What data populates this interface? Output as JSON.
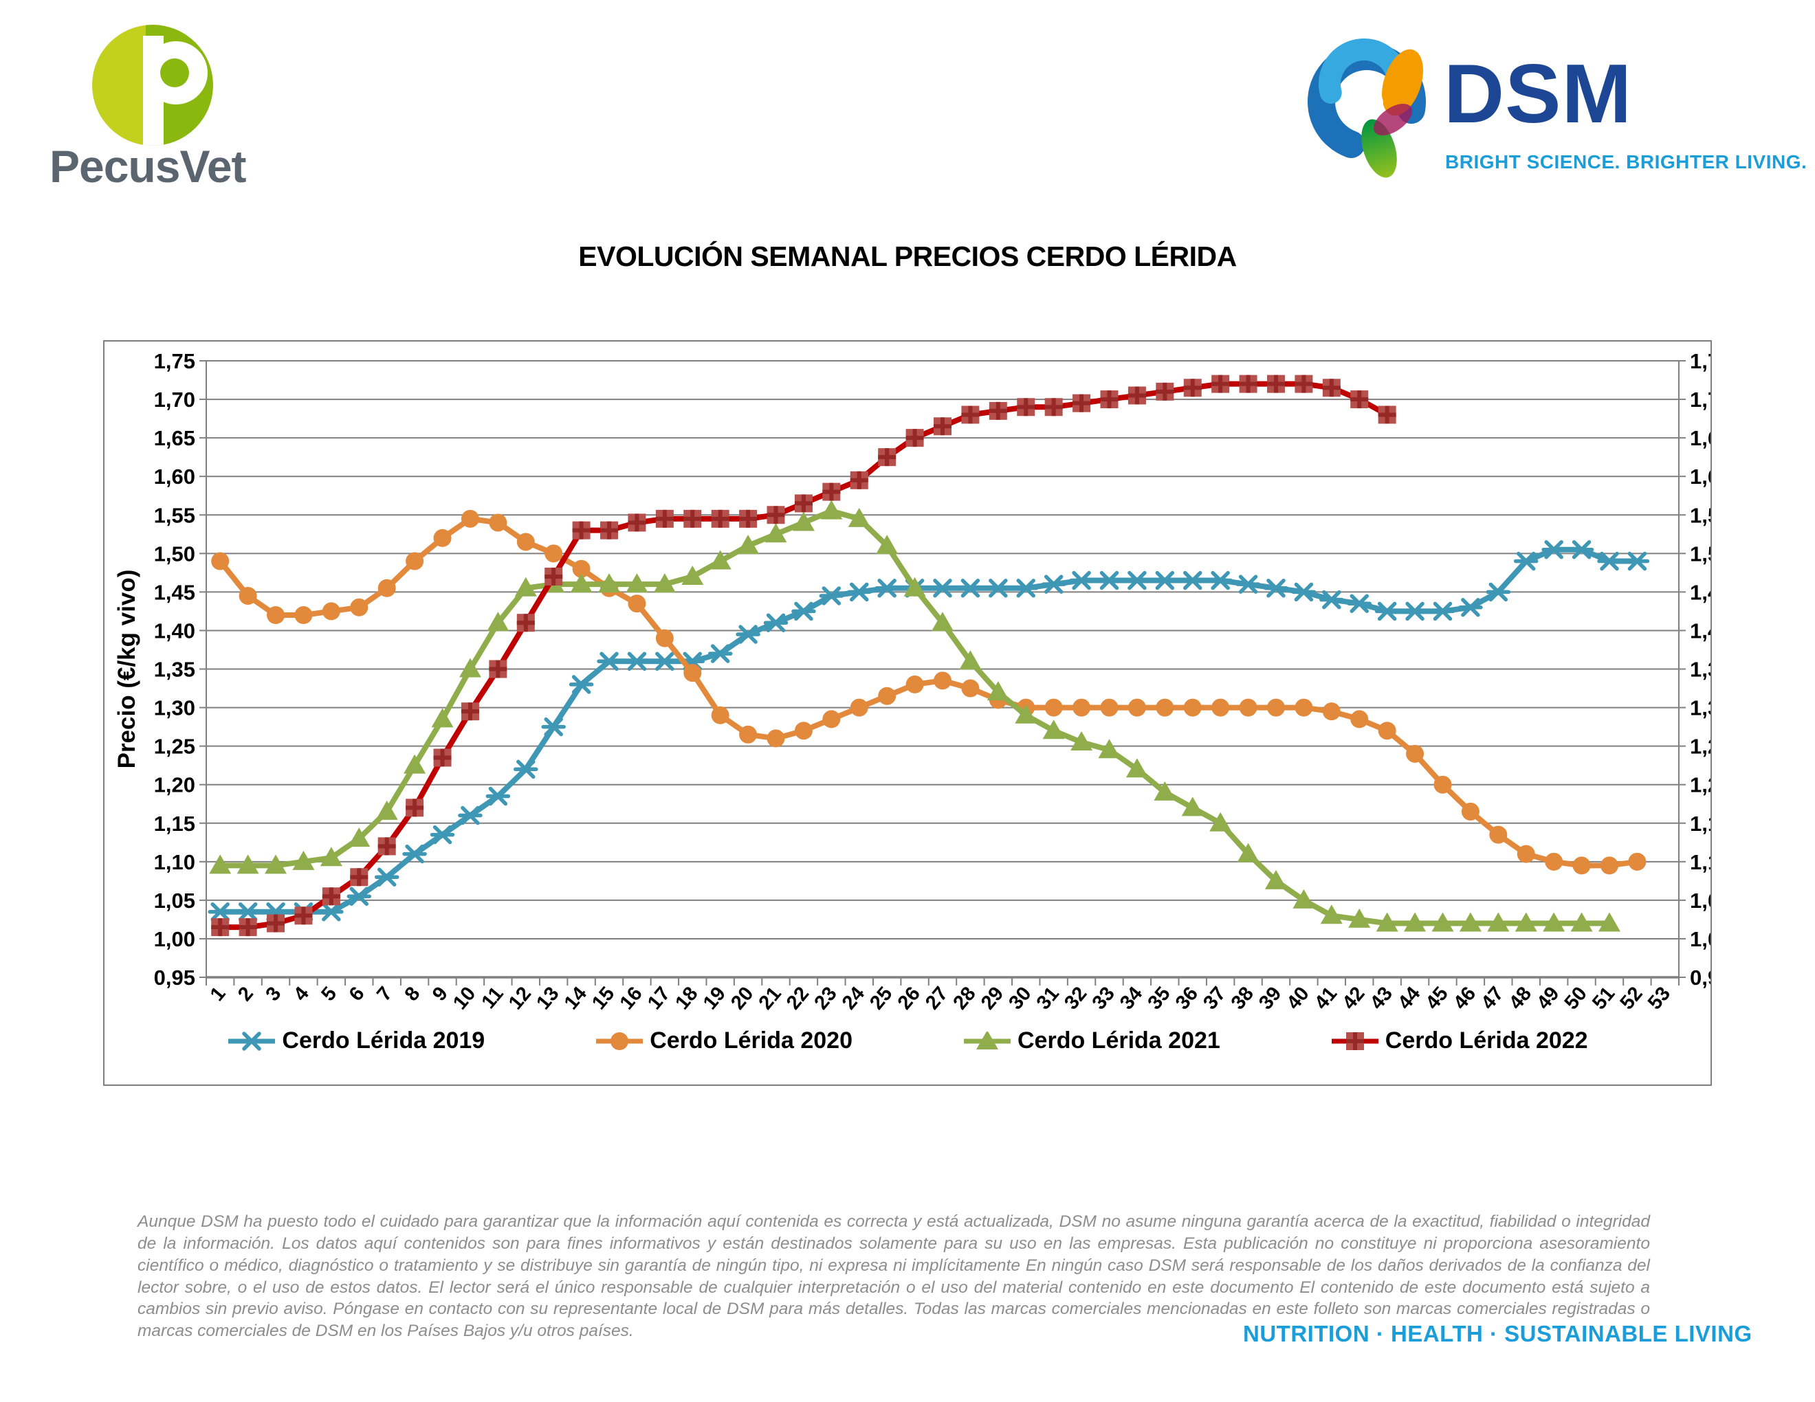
{
  "header": {
    "pecusvet": {
      "wordmark": "PecusVet",
      "monogram": "P"
    },
    "dsm": {
      "wordmark": "DSM",
      "tagline": "BRIGHT SCIENCE. BRIGHTER LIVING."
    }
  },
  "title": "EVOLUCIÓN SEMANAL PRECIOS CERDO LÉRIDA",
  "chart_data": {
    "type": "line",
    "title": "EVOLUCIÓN SEMANAL PRECIOS CERDO LÉRIDA",
    "xlabel": "",
    "ylabel": "Precio (€/kg vivo)",
    "ylim": [
      0.95,
      1.75
    ],
    "ytick_step": 0.05,
    "grid": true,
    "legend_position": "bottom",
    "x": [
      1,
      2,
      3,
      4,
      5,
      6,
      7,
      8,
      9,
      10,
      11,
      12,
      13,
      14,
      15,
      16,
      17,
      18,
      19,
      20,
      21,
      22,
      23,
      24,
      25,
      26,
      27,
      28,
      29,
      30,
      31,
      32,
      33,
      34,
      35,
      36,
      37,
      38,
      39,
      40,
      41,
      42,
      43,
      44,
      45,
      46,
      47,
      48,
      49,
      50,
      51,
      52,
      53
    ],
    "series": [
      {
        "name": "Cerdo Lérida 2019",
        "color": "#3e97b4",
        "marker": "star",
        "values": [
          1.035,
          1.035,
          1.035,
          1.035,
          1.035,
          1.055,
          1.08,
          1.11,
          1.135,
          1.16,
          1.185,
          1.22,
          1.275,
          1.33,
          1.36,
          1.36,
          1.36,
          1.36,
          1.37,
          1.395,
          1.41,
          1.425,
          1.445,
          1.45,
          1.455,
          1.455,
          1.455,
          1.455,
          1.455,
          1.455,
          1.46,
          1.465,
          1.465,
          1.465,
          1.465,
          1.465,
          1.465,
          1.46,
          1.455,
          1.45,
          1.44,
          1.435,
          1.425,
          1.425,
          1.425,
          1.43,
          1.45,
          1.49,
          1.505,
          1.505,
          1.49,
          1.49
        ]
      },
      {
        "name": "Cerdo Lérida 2020",
        "color": "#e2893b",
        "marker": "circle",
        "values": [
          1.49,
          1.445,
          1.42,
          1.42,
          1.425,
          1.43,
          1.455,
          1.49,
          1.52,
          1.545,
          1.54,
          1.515,
          1.5,
          1.48,
          1.455,
          1.435,
          1.39,
          1.345,
          1.29,
          1.265,
          1.26,
          1.27,
          1.285,
          1.3,
          1.315,
          1.33,
          1.335,
          1.325,
          1.31,
          1.3,
          1.3,
          1.3,
          1.3,
          1.3,
          1.3,
          1.3,
          1.3,
          1.3,
          1.3,
          1.3,
          1.295,
          1.285,
          1.27,
          1.24,
          1.2,
          1.165,
          1.135,
          1.11,
          1.1,
          1.095,
          1.095,
          1.1
        ]
      },
      {
        "name": "Cerdo Lérida 2021",
        "color": "#90ad4b",
        "marker": "triangle",
        "values": [
          1.095,
          1.095,
          1.095,
          1.1,
          1.105,
          1.13,
          1.165,
          1.225,
          1.285,
          1.35,
          1.41,
          1.455,
          1.46,
          1.46,
          1.46,
          1.46,
          1.46,
          1.47,
          1.49,
          1.51,
          1.525,
          1.54,
          1.555,
          1.545,
          1.51,
          1.455,
          1.41,
          1.36,
          1.32,
          1.29,
          1.27,
          1.255,
          1.245,
          1.22,
          1.19,
          1.17,
          1.15,
          1.11,
          1.075,
          1.05,
          1.03,
          1.025,
          1.02,
          1.02,
          1.02,
          1.02,
          1.02,
          1.02,
          1.02,
          1.02,
          1.02
        ]
      },
      {
        "name": "Cerdo Lérida 2022",
        "color": "#c00000",
        "marker": "square-cross",
        "marker_fill": "#b5504c",
        "marker_cross": "#962826",
        "values": [
          1.015,
          1.015,
          1.02,
          1.03,
          1.055,
          1.08,
          1.12,
          1.17,
          1.235,
          1.295,
          1.35,
          1.41,
          1.47,
          1.53,
          1.53,
          1.54,
          1.545,
          1.545,
          1.545,
          1.545,
          1.55,
          1.565,
          1.58,
          1.595,
          1.625,
          1.65,
          1.665,
          1.68,
          1.685,
          1.69,
          1.69,
          1.695,
          1.7,
          1.705,
          1.71,
          1.715,
          1.72,
          1.72,
          1.72,
          1.72,
          1.715,
          1.7,
          1.68
        ]
      }
    ]
  },
  "footer": {
    "disclaimer": "Aunque DSM ha puesto todo el cuidado para garantizar que la información aquí contenida es correcta y está actualizada, DSM no asume ninguna garantía acerca de la exactitud, fiabilidad o integridad de la información. Los datos aquí contenidos son para fines informativos y están destinados solamente para su uso en las empresas. Esta publicación no constituye ni proporciona asesoramiento científico o médico, diagnóstico o tratamiento y se distribuye sin garantía de ningún tipo, ni expresa ni implícitamente En ningún caso DSM será responsable de los daños derivados de la confianza del lector sobre, o el uso de estos datos. El lector será el único responsable de cualquier interpretación o el uso del material contenido en este documento El contenido de este documento está sujeto a cambios sin previo aviso. Póngase en contacto con su representante local de DSM para más detalles. Todas las marcas comerciales mencionadas en este folleto son marcas comerciales registradas o marcas comerciales de DSM en los Países Bajos y/u otros países.",
    "tagline": "NUTRITION · HEALTH · SUSTAINABLE LIVING"
  }
}
